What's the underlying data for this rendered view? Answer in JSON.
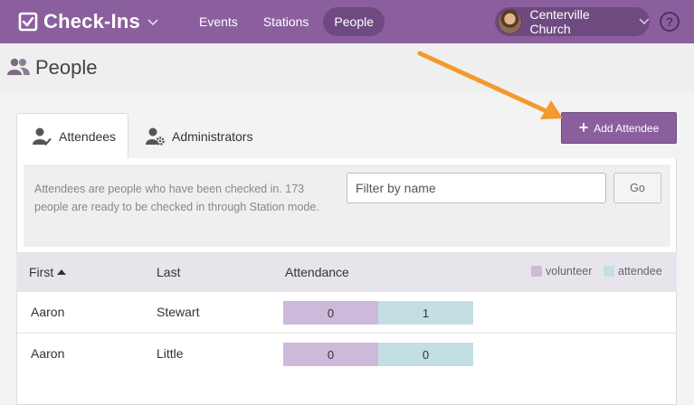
{
  "header": {
    "app_title": "Check-Ins",
    "nav": [
      {
        "label": "Events",
        "active": false
      },
      {
        "label": "Stations",
        "active": false
      },
      {
        "label": "People",
        "active": true
      }
    ],
    "organization": "Centerville Church",
    "help_label": "?"
  },
  "page": {
    "title": "People"
  },
  "tabs": [
    {
      "label": "Attendees",
      "active": true,
      "icon": "attendee-check-icon"
    },
    {
      "label": "Administrators",
      "active": false,
      "icon": "admin-gear-icon"
    }
  ],
  "actions": {
    "add_attendee_label": "Add Attendee"
  },
  "info": {
    "text": "Attendees are people who have been checked in. 173 people are ready to be checked in through Station mode."
  },
  "filter": {
    "placeholder": "Filter by name",
    "value": "",
    "go_label": "Go"
  },
  "table": {
    "columns": {
      "first": "First",
      "last": "Last",
      "attendance": "Attendance"
    },
    "sort": {
      "column": "first",
      "direction": "asc"
    },
    "legend": [
      {
        "label": "volunteer",
        "color": "#cdb9da"
      },
      {
        "label": "attendee",
        "color": "#c3dfe3"
      }
    ],
    "rows": [
      {
        "first": "Aaron",
        "last": "Stewart",
        "volunteer": "0",
        "attendee": "1"
      },
      {
        "first": "Aaron",
        "last": "Little",
        "volunteer": "0",
        "attendee": "0"
      }
    ]
  },
  "colors": {
    "brand": "#8b5f9d",
    "brand_dark": "#6f4a80",
    "annotation_arrow": "#f39a2d"
  }
}
